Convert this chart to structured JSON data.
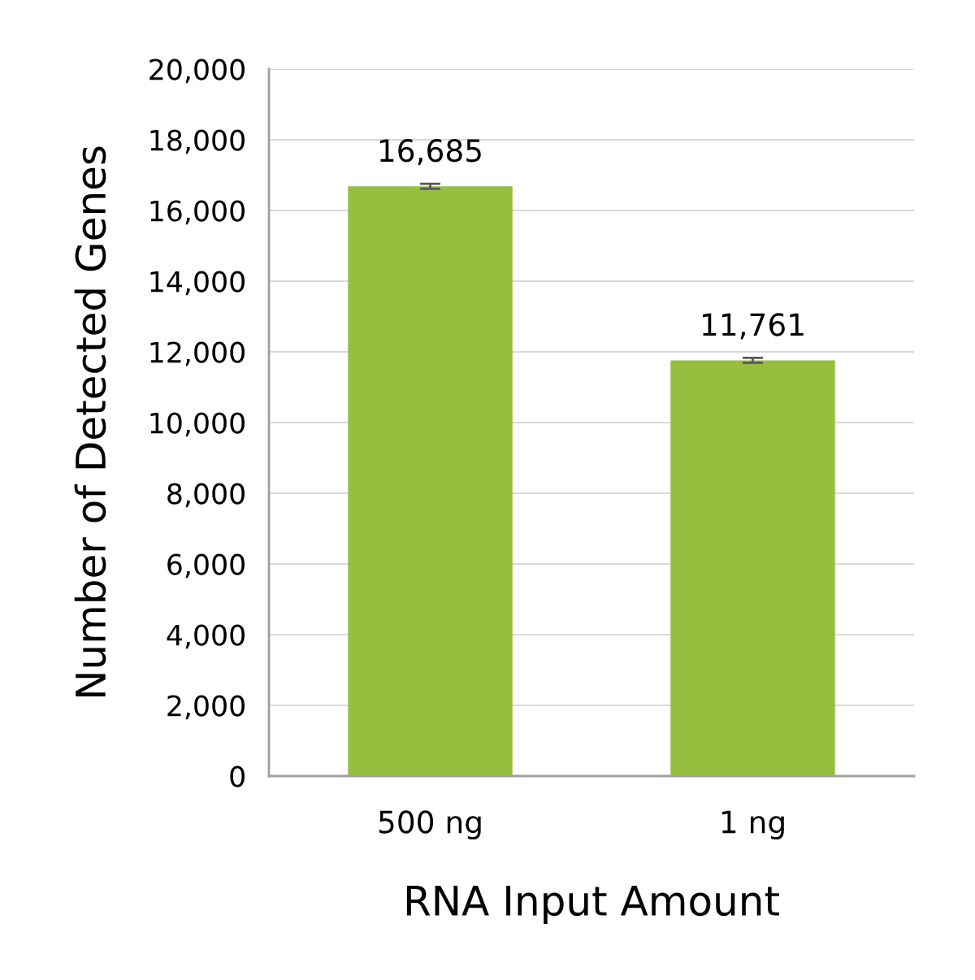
{
  "chart_data": {
    "type": "bar",
    "xlabel": "RNA Input Amount",
    "ylabel": "Number of Detected Genes",
    "categories": [
      "500 ng",
      "1 ng"
    ],
    "series": [
      {
        "color": "#96bf3f",
        "values": [
          16685,
          11761
        ],
        "errors": [
          70,
          70
        ],
        "value_labels": [
          "16,685",
          "11,761"
        ]
      }
    ],
    "ylim": [
      0,
      20000
    ],
    "yticks": [
      {
        "value": 0,
        "label": "0"
      },
      {
        "value": 2000,
        "label": "2,000"
      },
      {
        "value": 4000,
        "label": "4,000"
      },
      {
        "value": 6000,
        "label": "6,000"
      },
      {
        "value": 8000,
        "label": "8,000"
      },
      {
        "value": 10000,
        "label": "10,000"
      },
      {
        "value": 12000,
        "label": "12,000"
      },
      {
        "value": 14000,
        "label": "14,000"
      },
      {
        "value": 16000,
        "label": "16,000"
      },
      {
        "value": 18000,
        "label": "18,000"
      },
      {
        "value": 20000,
        "label": "20,000"
      }
    ],
    "grid": "y"
  }
}
